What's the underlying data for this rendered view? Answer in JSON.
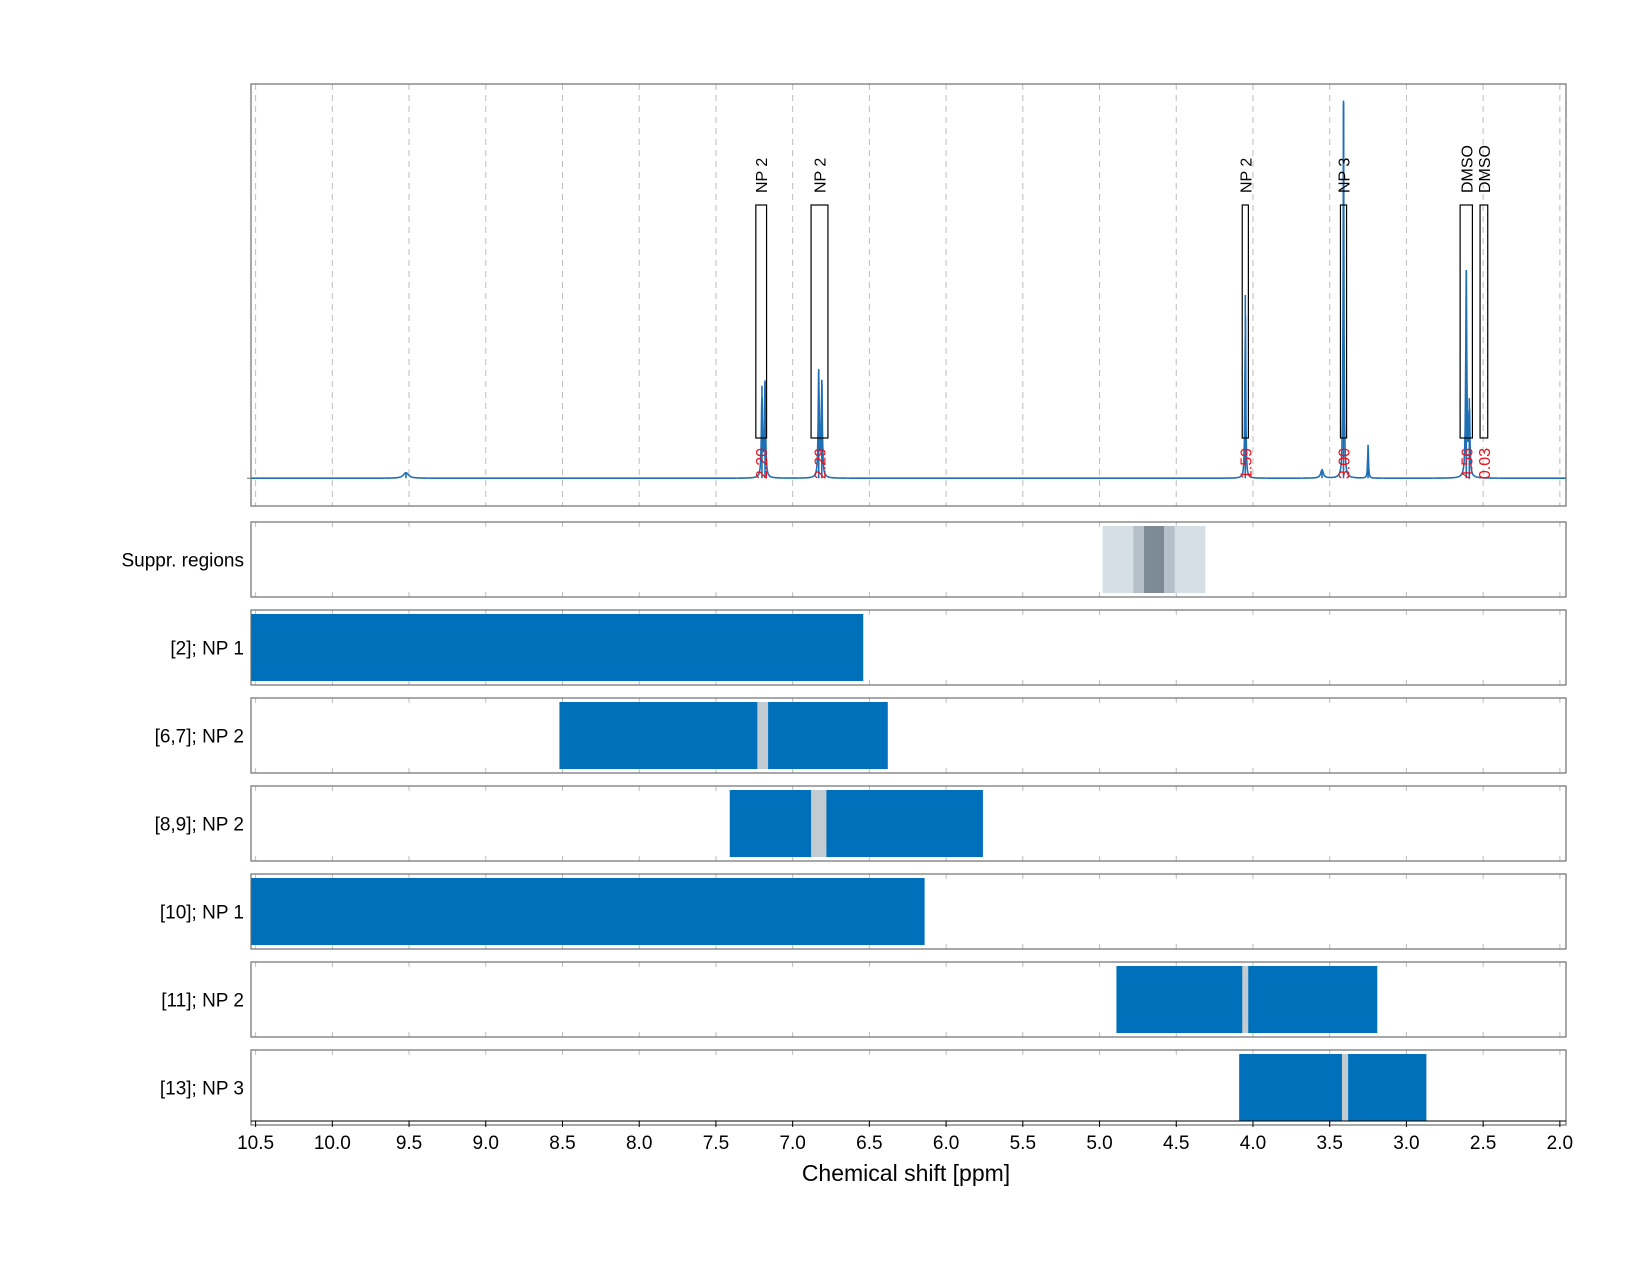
{
  "chart_data": {
    "type": "nmr-spectrum-with-regions",
    "xlabel": "Chemical shift [ppm]",
    "xlim": [
      10.53,
      1.96
    ],
    "x_ticks": [
      "10.5",
      "10.0",
      "9.5",
      "9.0",
      "8.5",
      "8.0",
      "7.5",
      "7.0",
      "6.5",
      "6.0",
      "5.5",
      "5.0",
      "4.5",
      "4.0",
      "3.5",
      "3.0",
      "2.5",
      "2.0"
    ],
    "x_tick_values": [
      10.5,
      10.0,
      9.5,
      9.0,
      8.5,
      8.0,
      7.5,
      7.0,
      6.5,
      6.0,
      5.5,
      5.0,
      4.5,
      4.0,
      3.5,
      3.0,
      2.5,
      2.0
    ],
    "grid": true,
    "spectrum": {
      "color": "#1f6fb5",
      "baseline": 0.0,
      "ylim": [
        -0.05,
        0.71
      ],
      "peaks": [
        {
          "x": 9.52,
          "height": 0.01,
          "width": 0.02
        },
        {
          "x": 7.2,
          "height": 0.16,
          "width": 0.004
        },
        {
          "x": 7.18,
          "height": 0.17,
          "width": 0.004
        },
        {
          "x": 6.83,
          "height": 0.19,
          "width": 0.004
        },
        {
          "x": 6.81,
          "height": 0.17,
          "width": 0.004
        },
        {
          "x": 4.05,
          "height": 0.33,
          "width": 0.003
        },
        {
          "x": 3.55,
          "height": 0.015,
          "width": 0.01
        },
        {
          "x": 3.41,
          "height": 0.68,
          "width": 0.003
        },
        {
          "x": 3.25,
          "height": 0.06,
          "width": 0.003
        },
        {
          "x": 2.61,
          "height": 0.37,
          "width": 0.004
        },
        {
          "x": 2.59,
          "height": 0.13,
          "width": 0.004
        }
      ]
    },
    "annotations": [
      {
        "label": "NP 2",
        "value": "2.20",
        "x_min": 7.24,
        "x_max": 7.17
      },
      {
        "label": "NP 2",
        "value": "2.29",
        "x_min": 6.88,
        "x_max": 6.77
      },
      {
        "label": "NP 2",
        "value": "1.59",
        "x_min": 4.07,
        "x_max": 4.03
      },
      {
        "label": "NP 3",
        "value": "3.00",
        "x_min": 3.43,
        "x_max": 3.39
      },
      {
        "label": "DMSO",
        "value": "4.56",
        "x_min": 2.65,
        "x_max": 2.57
      },
      {
        "label": "DMSO",
        "value": "0.03",
        "x_min": 2.52,
        "x_max": 2.47
      }
    ],
    "rows": [
      {
        "label": "Suppr. regions",
        "type": "suppression",
        "bands": [
          {
            "x_min": 4.98,
            "x_max": 4.31,
            "color": "#d6dee6"
          },
          {
            "x_min": 4.78,
            "x_max": 4.51,
            "color": "#b5c0cb"
          },
          {
            "x_min": 4.71,
            "x_max": 4.58,
            "color": "#7d8b96"
          }
        ]
      },
      {
        "label": "[2]; NP 1",
        "x_min": 10.53,
        "x_max": 6.54,
        "gaps": []
      },
      {
        "label": "[6,7]; NP 2",
        "x_min": 8.52,
        "x_max": 6.38,
        "gaps": [
          {
            "x_min": 7.23,
            "x_max": 7.16
          }
        ]
      },
      {
        "label": "[8,9]; NP 2",
        "x_min": 7.41,
        "x_max": 5.76,
        "gaps": [
          {
            "x_min": 6.88,
            "x_max": 6.78
          }
        ]
      },
      {
        "label": "[10]; NP 1",
        "x_min": 10.53,
        "x_max": 6.14,
        "gaps": []
      },
      {
        "label": "[11]; NP 2",
        "x_min": 4.89,
        "x_max": 3.19,
        "gaps": [
          {
            "x_min": 4.07,
            "x_max": 4.04
          }
        ]
      },
      {
        "label": "[13]; NP 3",
        "x_min": 4.09,
        "x_max": 2.87,
        "gaps": [
          {
            "x_min": 3.42,
            "x_max": 3.38
          }
        ]
      }
    ],
    "colors": {
      "bar": "#0070bb",
      "gap": "#c3cbd2",
      "frame": "#6e6e6e",
      "grid": "#bdbdbd",
      "annotation_value": "#e8121b"
    }
  }
}
